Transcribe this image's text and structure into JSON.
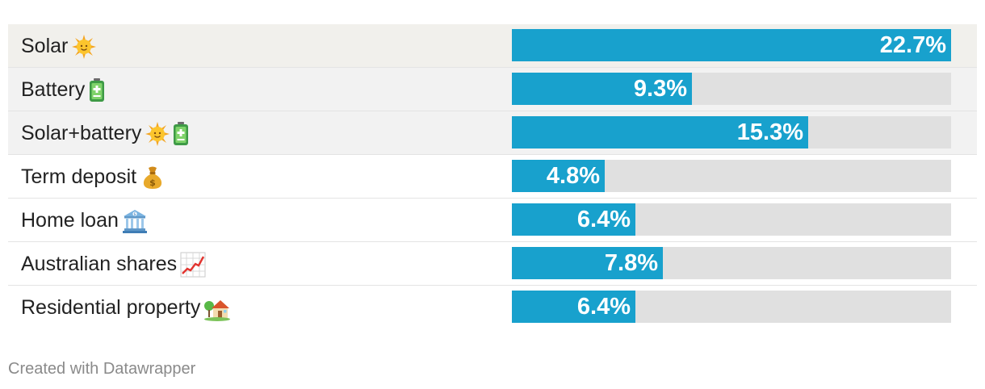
{
  "chart_data": {
    "type": "bar",
    "orientation": "horizontal",
    "title": "",
    "xlabel": "",
    "ylabel": "",
    "xlim": [
      0,
      22.7
    ],
    "unit": "%",
    "rows": [
      {
        "label": "Solar",
        "value": 22.7,
        "display": "22.7%",
        "icons": [
          "sun-icon"
        ],
        "highlighted": true
      },
      {
        "label": "Battery",
        "value": 9.3,
        "display": "9.3%",
        "icons": [
          "battery-icon"
        ],
        "highlighted": true
      },
      {
        "label": "Solar+battery",
        "value": 15.3,
        "display": "15.3%",
        "icons": [
          "sun-icon",
          "battery-icon"
        ],
        "highlighted": true
      },
      {
        "label": "Term deposit",
        "value": 4.8,
        "display": "4.8%",
        "icons": [
          "money-bag-icon"
        ],
        "highlighted": false
      },
      {
        "label": "Home loan",
        "value": 6.4,
        "display": "6.4%",
        "icons": [
          "bank-icon"
        ],
        "highlighted": false
      },
      {
        "label": "Australian shares",
        "value": 7.8,
        "display": "7.8%",
        "icons": [
          "chart-increasing-icon"
        ],
        "highlighted": false
      },
      {
        "label": "Residential property",
        "value": 6.4,
        "display": "6.4%",
        "icons": [
          "house-icon"
        ],
        "highlighted": false
      }
    ]
  },
  "colors": {
    "bar": "#18a1cd",
    "track": "#e0e0e0",
    "highlight_row": "#f2f2f2",
    "value_text": "#ffffff"
  },
  "footer": {
    "credit": "Created with Datawrapper"
  }
}
